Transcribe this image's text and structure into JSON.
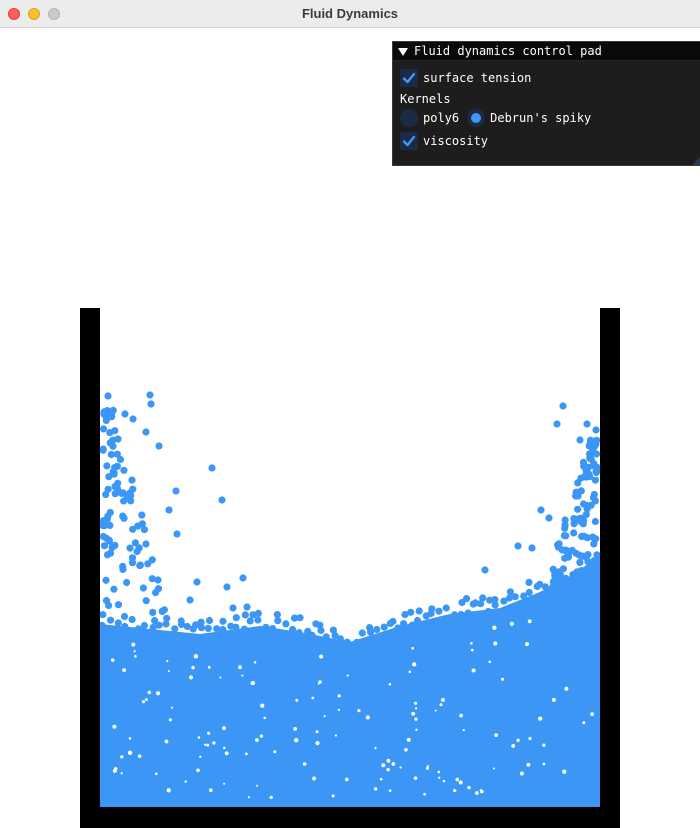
{
  "window": {
    "title": "Fluid Dynamics"
  },
  "control_pad": {
    "title": "Fluid dynamics control pad",
    "surface_tension": {
      "label": "surface tension",
      "checked": true
    },
    "kernels_label": "Kernels",
    "kernels": [
      {
        "label": "poly6",
        "selected": false
      },
      {
        "label": "Debrun's spiky",
        "selected": true
      }
    ],
    "viscosity": {
      "label": "viscosity",
      "checked": true
    }
  },
  "colors": {
    "particle": "#3b96f5",
    "container": "#000000",
    "accent": "#4296fa"
  },
  "icons": {
    "collapse": "triangle-down-icon",
    "check": "checkmark-icon",
    "resize": "resize-grip-icon"
  }
}
